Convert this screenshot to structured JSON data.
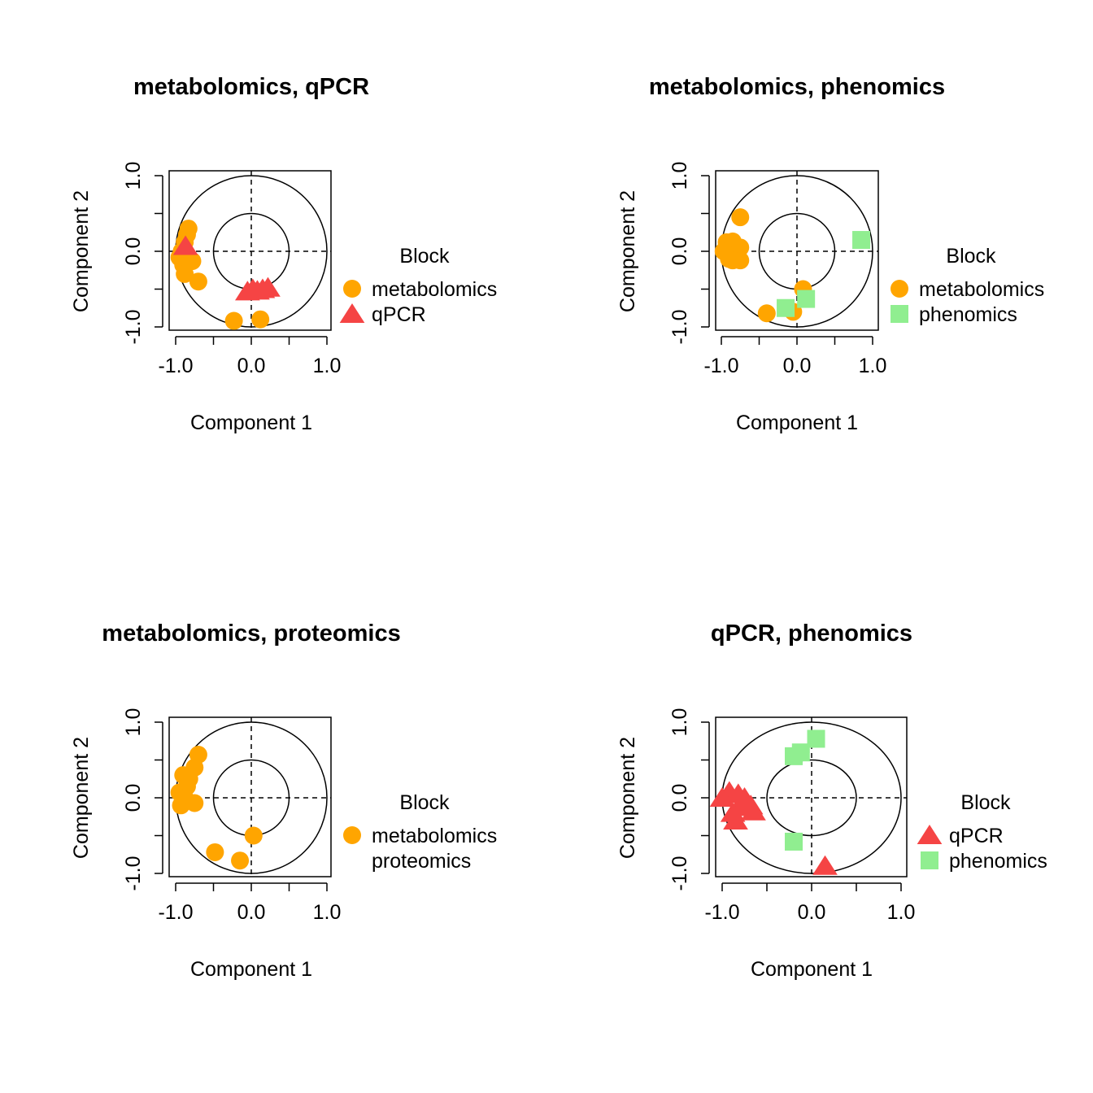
{
  "colors": {
    "metabolomics": "#FFA500",
    "qPCR": "#F54444",
    "phenomics": "#90EE90",
    "proteomics": "#000000"
  },
  "chart_data": [
    {
      "type": "scatter",
      "title": "metabolomics, qPCR",
      "xlabel": "Component  1",
      "ylabel": "Component  2",
      "xlim": [
        -1.0,
        1.0
      ],
      "ylim": [
        -1.0,
        1.0
      ],
      "xticks": [
        "-1.0",
        "0.0",
        "1.0"
      ],
      "yticks": [
        "-1.0",
        "0.0",
        "1.0"
      ],
      "circles": [
        0.5,
        1.0
      ],
      "legend": {
        "title": "Block",
        "position": "right"
      },
      "series": [
        {
          "name": "metabolomics",
          "shape": "circle",
          "color": "#FFA500",
          "points": [
            [
              -0.83,
              0.3
            ],
            [
              -0.85,
              0.22
            ],
            [
              -0.88,
              0.12
            ],
            [
              -0.92,
              0.0
            ],
            [
              -0.95,
              -0.08
            ],
            [
              -0.9,
              -0.18
            ],
            [
              -0.88,
              -0.3
            ],
            [
              -0.78,
              -0.13
            ],
            [
              -0.7,
              -0.4
            ],
            [
              -0.23,
              -0.92
            ],
            [
              0.12,
              -0.9
            ]
          ]
        },
        {
          "name": "qPCR",
          "shape": "triangle",
          "color": "#F54444",
          "points": [
            [
              -0.87,
              0.07
            ],
            [
              0.02,
              -0.5
            ],
            [
              0.08,
              -0.52
            ],
            [
              0.15,
              -0.5
            ],
            [
              0.22,
              -0.48
            ],
            [
              -0.05,
              -0.53
            ]
          ]
        }
      ]
    },
    {
      "type": "scatter",
      "title": "metabolomics, phenomics",
      "xlabel": "Component  1",
      "ylabel": "Component  2",
      "xlim": [
        -1.0,
        1.0
      ],
      "ylim": [
        -1.0,
        1.0
      ],
      "xticks": [
        "-1.0",
        "0.0",
        "1.0"
      ],
      "yticks": [
        "-1.0",
        "0.0",
        "1.0"
      ],
      "circles": [
        0.5,
        1.0
      ],
      "legend": {
        "title": "Block",
        "position": "right"
      },
      "series": [
        {
          "name": "metabolomics",
          "shape": "circle",
          "color": "#FFA500",
          "points": [
            [
              -0.75,
              0.45
            ],
            [
              -0.93,
              0.12
            ],
            [
              -0.85,
              0.13
            ],
            [
              -0.75,
              0.05
            ],
            [
              -0.97,
              0.0
            ],
            [
              -0.9,
              -0.1
            ],
            [
              -0.75,
              -0.12
            ],
            [
              -0.85,
              -0.12
            ],
            [
              0.08,
              -0.5
            ],
            [
              -0.4,
              -0.82
            ],
            [
              -0.05,
              -0.8
            ]
          ]
        },
        {
          "name": "phenomics",
          "shape": "square",
          "color": "#90EE90",
          "points": [
            [
              0.85,
              0.15
            ],
            [
              0.12,
              -0.63
            ],
            [
              -0.15,
              -0.75
            ]
          ]
        }
      ]
    },
    {
      "type": "scatter",
      "title": "metabolomics, proteomics",
      "xlabel": "Component  1",
      "ylabel": "Component  2",
      "xlim": [
        -1.0,
        1.0
      ],
      "ylim": [
        -1.0,
        1.0
      ],
      "xticks": [
        "-1.0",
        "0.0",
        "1.0"
      ],
      "yticks": [
        "-1.0",
        "0.0",
        "1.0"
      ],
      "circles": [
        0.5,
        1.0
      ],
      "legend": {
        "title": "Block",
        "position": "right"
      },
      "series": [
        {
          "name": "metabolomics",
          "shape": "circle",
          "color": "#FFA500",
          "points": [
            [
              -0.7,
              0.57
            ],
            [
              -0.75,
              0.4
            ],
            [
              -0.9,
              0.3
            ],
            [
              -0.82,
              0.25
            ],
            [
              -0.85,
              0.15
            ],
            [
              -0.95,
              0.07
            ],
            [
              -0.88,
              0.0
            ],
            [
              -0.93,
              -0.1
            ],
            [
              -0.75,
              -0.07
            ],
            [
              0.03,
              -0.5
            ],
            [
              -0.48,
              -0.72
            ],
            [
              -0.15,
              -0.83
            ]
          ]
        },
        {
          "name": "proteomics",
          "shape": "none",
          "color": "#000000",
          "points": []
        }
      ]
    },
    {
      "type": "scatter",
      "title": "qPCR, phenomics",
      "xlabel": "Component  1",
      "ylabel": "Component  2",
      "xlim": [
        -1.0,
        1.0
      ],
      "ylim": [
        -1.0,
        1.0
      ],
      "xticks": [
        "-1.0",
        "0.0",
        "1.0"
      ],
      "yticks": [
        "-1.0",
        "0.0",
        "1.0"
      ],
      "circles": [
        0.5,
        1.0
      ],
      "legend": {
        "title": "Block",
        "position": "right"
      },
      "series": [
        {
          "name": "qPCR",
          "shape": "triangle",
          "color": "#F54444",
          "points": [
            [
              -0.92,
              0.08
            ],
            [
              -0.82,
              0.05
            ],
            [
              -0.75,
              0.0
            ],
            [
              -0.68,
              -0.1
            ],
            [
              -0.78,
              -0.12
            ],
            [
              -0.88,
              -0.2
            ],
            [
              -1.0,
              0.0
            ],
            [
              -0.85,
              -0.3
            ],
            [
              0.15,
              -0.9
            ],
            [
              -0.65,
              -0.18
            ]
          ]
        },
        {
          "name": "phenomics",
          "shape": "square",
          "color": "#90EE90",
          "points": [
            [
              0.05,
              0.78
            ],
            [
              -0.2,
              0.55
            ],
            [
              -0.12,
              0.6
            ],
            [
              -0.2,
              -0.58
            ]
          ]
        }
      ]
    }
  ]
}
